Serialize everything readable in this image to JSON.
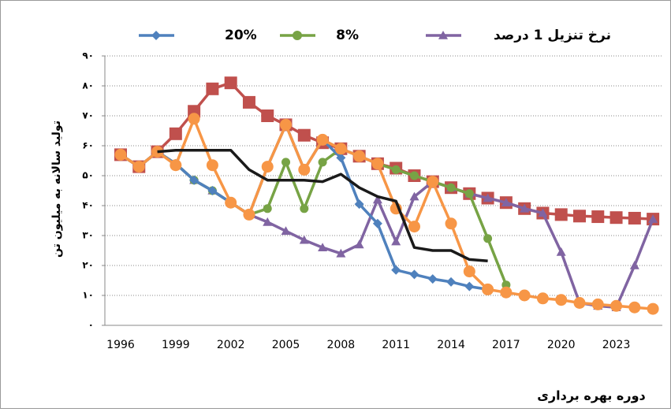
{
  "chart_data": {
    "type": "line",
    "y_label": "تولید سالانه به میلیون تن",
    "x_label": "دوره بهره برداری",
    "categories": [
      "1996",
      null,
      null,
      "1999",
      null,
      null,
      "2002",
      null,
      null,
      "2005",
      null,
      null,
      "2008",
      null,
      null,
      "2011",
      null,
      null,
      "2014",
      null,
      null,
      "2017",
      null,
      null,
      "2020",
      null,
      null,
      "2023",
      null,
      null
    ],
    "ylim": [
      0,
      90
    ],
    "yticks": [
      {
        "value": 0,
        "label": "۰"
      },
      {
        "value": 10,
        "label": "۱۰"
      },
      {
        "value": 20,
        "label": "۲۰"
      },
      {
        "value": 30,
        "label": "۳۰"
      },
      {
        "value": 40,
        "label": "۴۰"
      },
      {
        "value": 50,
        "label": "۵۰"
      },
      {
        "value": 60,
        "label": "۶۰"
      },
      {
        "value": 70,
        "label": "۷۰"
      },
      {
        "value": 80,
        "label": "۸۰"
      },
      {
        "value": 90,
        "label": "۹۰"
      }
    ],
    "grid": true,
    "series": [
      {
        "color": "#c0504d",
        "marker": "square",
        "values": [
          57,
          53,
          58,
          64,
          71.5,
          79,
          81,
          74.5,
          70,
          67,
          63.5,
          61,
          59,
          56.5,
          54,
          52.5,
          50,
          48,
          46,
          44,
          42.5,
          41,
          39,
          37.5,
          37,
          36.5,
          36.3,
          36,
          35.8,
          35.5
        ]
      },
      {
        "name": "نرخ تنزیل 1 درصد",
        "color": "#8064a2",
        "marker": "triangle",
        "values": [
          57,
          53,
          58,
          54,
          48.5,
          45,
          41,
          37,
          34.5,
          31.5,
          28.5,
          26,
          24,
          27,
          42,
          28,
          43,
          48,
          46,
          44,
          42.5,
          41,
          39,
          37.5,
          24.5,
          7.5,
          6.5,
          6,
          20,
          35.5
        ]
      },
      {
        "name": "8%",
        "color": "#77a345",
        "marker": "circle",
        "values": [
          57,
          53,
          58,
          54,
          48.5,
          45,
          41,
          37,
          39,
          54.5,
          39,
          54.5,
          59,
          56.5,
          54,
          52,
          50,
          48,
          46,
          44,
          29,
          13.5,
          null,
          null,
          null,
          null,
          null,
          null,
          null,
          null
        ]
      },
      {
        "name": "20%",
        "color": "#4f81bd",
        "marker": "diamond",
        "values": [
          57,
          53,
          58,
          54,
          48.5,
          45,
          41,
          37,
          53,
          67,
          52,
          62,
          56,
          40.5,
          34,
          18.5,
          17,
          15.5,
          14.5,
          13,
          12,
          null,
          null,
          null,
          null,
          null,
          null,
          null,
          null,
          null
        ]
      },
      {
        "color": "#f79646",
        "marker": "circle",
        "values": [
          57,
          53,
          58,
          53.5,
          69,
          53.5,
          41,
          37,
          53,
          67,
          52,
          62,
          59,
          56.5,
          54,
          39,
          33,
          48,
          34,
          18,
          12,
          11,
          10,
          9,
          8.5,
          7.5,
          7,
          6.5,
          6,
          5.5
        ]
      },
      {
        "color": "#1a1a1a",
        "marker": "none",
        "values": [
          null,
          null,
          58,
          58.5,
          58.5,
          58.5,
          58.5,
          52,
          48.5,
          48.5,
          48.5,
          48,
          50.5,
          46,
          43,
          41.5,
          26,
          25,
          25,
          22,
          21.5,
          null,
          null,
          null,
          null,
          null,
          null,
          null,
          null,
          null
        ]
      }
    ]
  }
}
